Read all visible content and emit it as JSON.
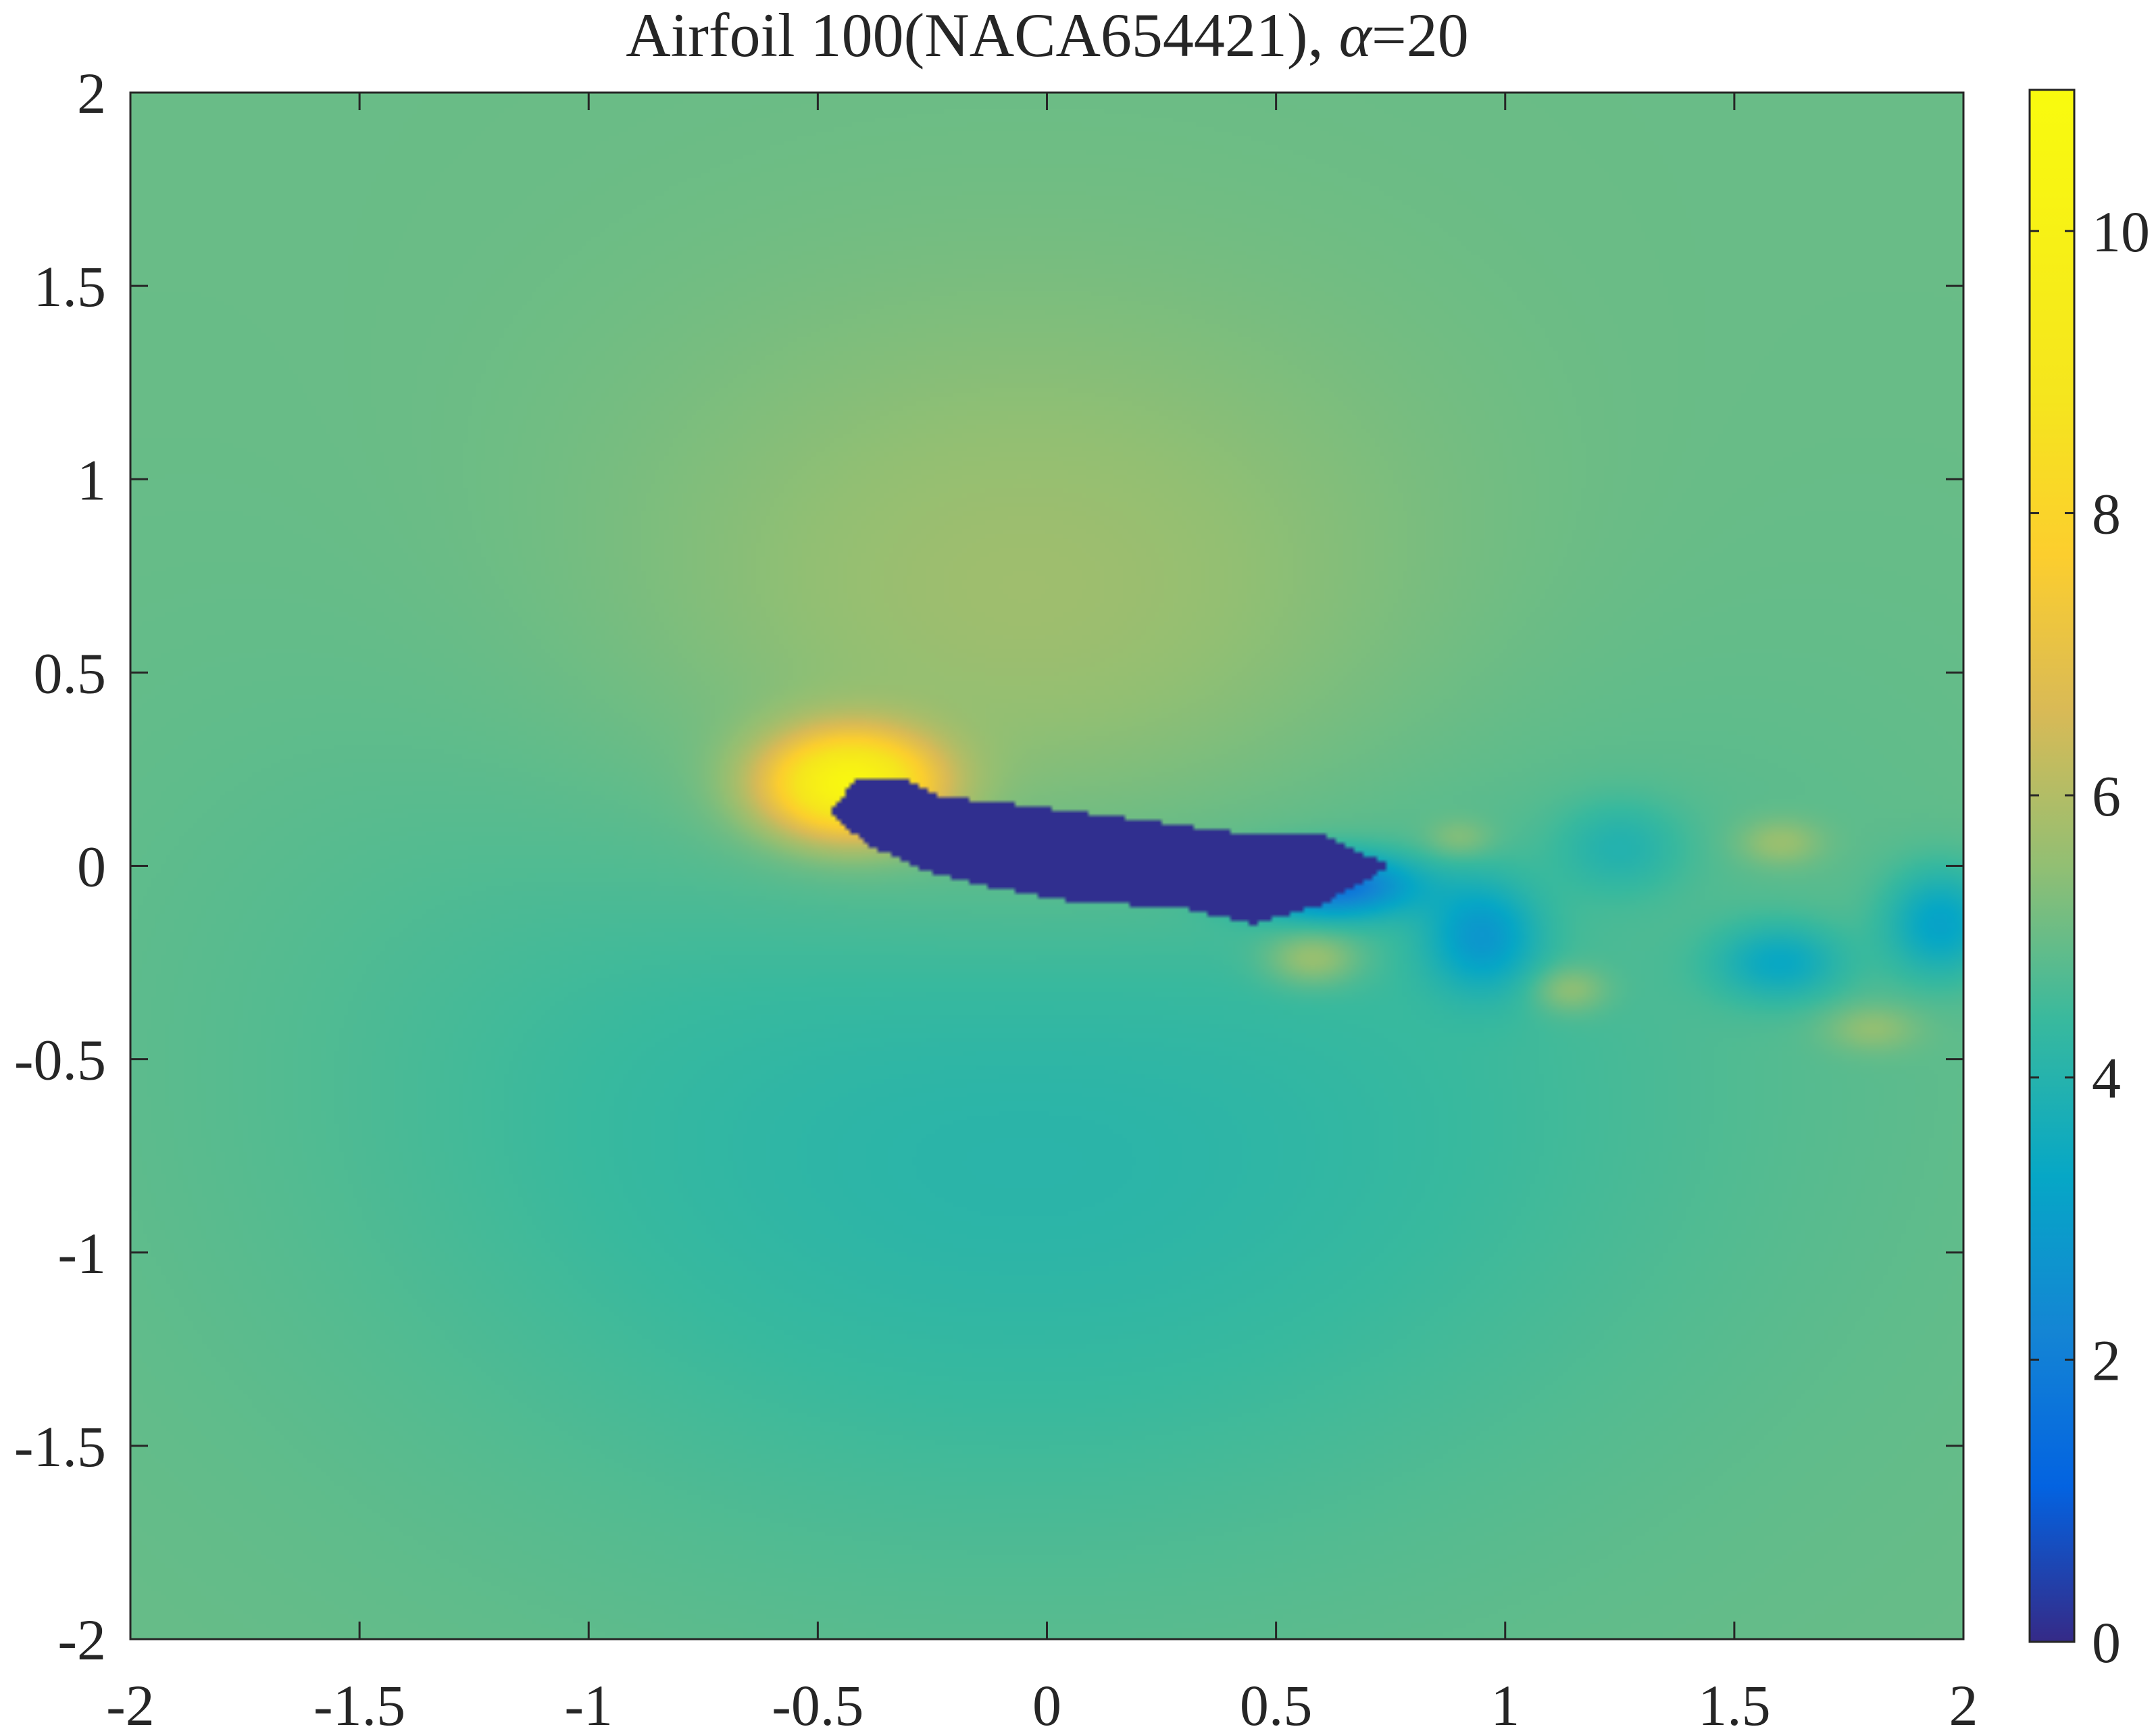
{
  "chart_data": {
    "type": "heatmap",
    "title_text": "Airfoil 100(NACA654421), ",
    "title_alpha_symbol": "α",
    "title_alpha_value": "=20",
    "xlabel": "",
    "ylabel": "",
    "xlim": [
      -2,
      2
    ],
    "ylim": [
      -2,
      2
    ],
    "x_ticks": [
      -2,
      -1.5,
      -1,
      -0.5,
      0,
      0.5,
      1,
      1.5,
      2
    ],
    "x_tick_labels": [
      "-2",
      "-1.5",
      "-1",
      "-0.5",
      "0",
      "0.5",
      "1",
      "1.5",
      "2"
    ],
    "y_ticks": [
      2,
      1.5,
      1,
      0.5,
      0,
      -0.5,
      -1,
      -1.5,
      -2
    ],
    "y_tick_labels": [
      "2",
      "1.5",
      "1",
      "0.5",
      "0",
      "-0.5",
      "-1",
      "-1.5",
      "-2"
    ],
    "colorbar": {
      "colormap": "parula",
      "limits": [
        0,
        11
      ],
      "ticks": [
        0,
        2,
        4,
        6,
        8,
        10
      ],
      "tick_labels": [
        "0",
        "2",
        "4",
        "6",
        "8",
        "10"
      ]
    },
    "freestream_value": 5.0,
    "grid": false,
    "field_features": [
      {
        "kind": "body",
        "description": "airfoil at 20 deg incidence (near-zero values)",
        "value": 0.1,
        "polygon": [
          [
            -0.47,
            0.14
          ],
          [
            -0.42,
            0.22
          ],
          [
            -0.3,
            0.22
          ],
          [
            -0.23,
            0.18
          ],
          [
            0.0,
            0.15
          ],
          [
            0.2,
            0.12
          ],
          [
            0.45,
            0.08
          ],
          [
            0.6,
            0.08
          ],
          [
            0.75,
            0.0
          ],
          [
            0.6,
            -0.1
          ],
          [
            0.45,
            -0.15
          ],
          [
            0.3,
            -0.11
          ],
          [
            0.05,
            -0.09
          ],
          [
            -0.1,
            -0.06
          ],
          [
            -0.25,
            -0.02
          ],
          [
            -0.4,
            0.06
          ]
        ]
      },
      {
        "kind": "wake-core",
        "description": "low-speed separated wake region",
        "center": [
          0.62,
          -0.05
        ],
        "radius": [
          0.18,
          0.08
        ],
        "value": 1.8
      },
      {
        "kind": "suction-peak",
        "description": "high value near leading edge",
        "center": [
          -0.43,
          0.21
        ],
        "radius": [
          0.18,
          0.13
        ],
        "value": 10.5
      },
      {
        "kind": "upper-high",
        "description": "elevated values above the airfoil",
        "center": [
          -0.05,
          0.5
        ],
        "radius": [
          0.95,
          0.85
        ],
        "value": 6.2
      },
      {
        "kind": "lower-low",
        "description": "reduced values below the airfoil",
        "center": [
          -0.05,
          -0.45
        ],
        "radius": [
          1.4,
          1.2
        ],
        "value": 3.9
      },
      {
        "kind": "wake-vortex",
        "center": [
          0.95,
          -0.18
        ],
        "radius": [
          0.12,
          0.14
        ],
        "value": 3.2
      },
      {
        "kind": "wake-vortex",
        "center": [
          1.25,
          0.05
        ],
        "radius": [
          0.14,
          0.12
        ],
        "value": 4.2
      },
      {
        "kind": "wake-vortex",
        "center": [
          1.6,
          -0.25
        ],
        "radius": [
          0.14,
          0.1
        ],
        "value": 3.6
      },
      {
        "kind": "wake-vortex",
        "center": [
          1.95,
          -0.15
        ],
        "radius": [
          0.12,
          0.14
        ],
        "value": 3.3
      },
      {
        "kind": "wake-high",
        "center": [
          0.58,
          -0.24
        ],
        "radius": [
          0.1,
          0.07
        ],
        "value": 6.1
      },
      {
        "kind": "wake-high",
        "center": [
          1.14,
          -0.32
        ],
        "radius": [
          0.08,
          0.06
        ],
        "value": 5.9
      },
      {
        "kind": "wake-high",
        "center": [
          1.6,
          0.06
        ],
        "radius": [
          0.09,
          0.06
        ],
        "value": 5.8
      },
      {
        "kind": "wake-high",
        "center": [
          1.8,
          -0.42
        ],
        "radius": [
          0.1,
          0.06
        ],
        "value": 5.7
      },
      {
        "kind": "wake-high",
        "center": [
          0.9,
          0.07
        ],
        "radius": [
          0.07,
          0.05
        ],
        "value": 5.6
      }
    ]
  }
}
